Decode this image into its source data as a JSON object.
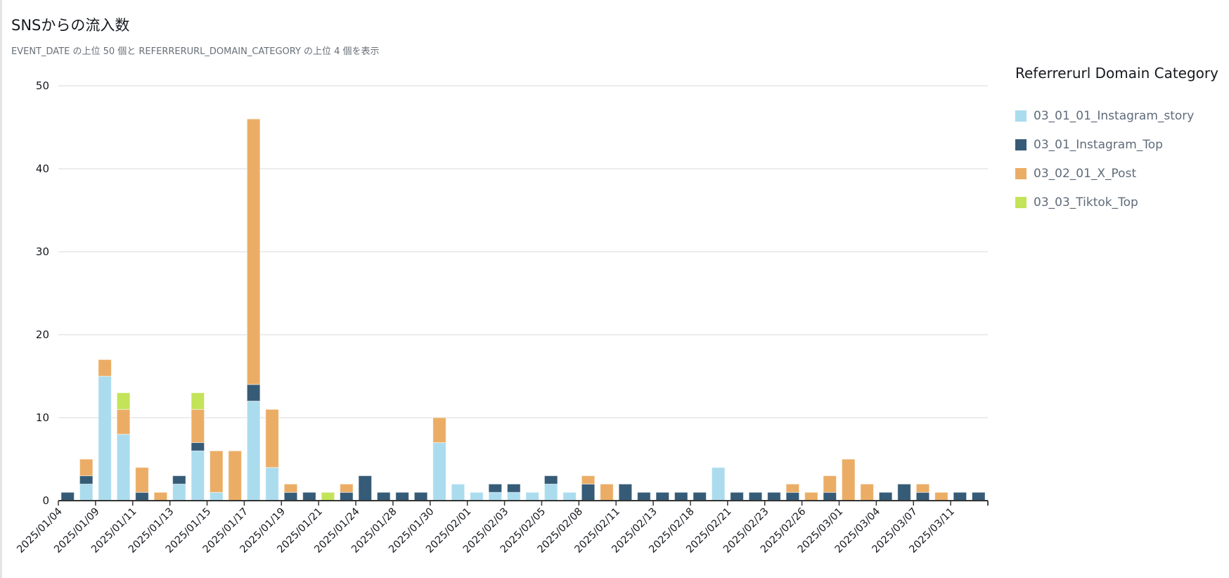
{
  "title": "SNSからの流入数",
  "subtitle": "EVENT_DATE の上位 50 個と REFERRERURL_DOMAIN_CATEGORY の上位 4 個を表示",
  "chart_data": {
    "type": "bar",
    "stacked": true,
    "title": "SNSからの流入数",
    "ylim": [
      0,
      50
    ],
    "yticks": [
      0,
      10,
      20,
      30,
      40,
      50
    ],
    "grid": true,
    "legend_title": "Referrerurl Domain Category",
    "legend_position": "right",
    "tick_labels": [
      "2025/01/04",
      "2025/01/09",
      "2025/01/11",
      "2025/01/13",
      "2025/01/15",
      "2025/01/17",
      "2025/01/19",
      "2025/01/21",
      "2025/01/24",
      "2025/01/28",
      "2025/01/30",
      "2025/02/01",
      "2025/02/03",
      "2025/02/05",
      "2025/02/08",
      "2025/02/11",
      "2025/02/13",
      "2025/02/18",
      "2025/02/21",
      "2025/02/23",
      "2025/02/26",
      "2025/03/01",
      "2025/03/04",
      "2025/03/07",
      "2025/03/11"
    ],
    "series": [
      {
        "name": "03_01_01_Instagram_story",
        "color": "#abdcee",
        "values": [
          0,
          2,
          15,
          8,
          0,
          0,
          2,
          6,
          1,
          0,
          12,
          4,
          0,
          0,
          0,
          0,
          0,
          0,
          0,
          0,
          7,
          2,
          1,
          1,
          1,
          1,
          2,
          1,
          0,
          0,
          0,
          0,
          0,
          0,
          0,
          4,
          0,
          0,
          0,
          0,
          0,
          0,
          0,
          0,
          0,
          0,
          0,
          0,
          0,
          0
        ]
      },
      {
        "name": "03_01_Instagram_Top",
        "color": "#365b77",
        "values": [
          1,
          1,
          0,
          0,
          1,
          0,
          1,
          1,
          0,
          0,
          2,
          0,
          1,
          1,
          0,
          1,
          3,
          1,
          1,
          1,
          0,
          0,
          0,
          1,
          1,
          0,
          1,
          0,
          2,
          0,
          2,
          1,
          1,
          1,
          1,
          0,
          1,
          1,
          1,
          1,
          0,
          1,
          0,
          0,
          1,
          2,
          1,
          0,
          1,
          1
        ]
      },
      {
        "name": "03_02_01_X_Post",
        "color": "#ebad65",
        "values": [
          0,
          2,
          2,
          3,
          3,
          1,
          0,
          4,
          5,
          6,
          32,
          7,
          1,
          0,
          0,
          1,
          0,
          0,
          0,
          0,
          3,
          0,
          0,
          0,
          0,
          0,
          0,
          0,
          1,
          2,
          0,
          0,
          0,
          0,
          0,
          0,
          0,
          0,
          0,
          1,
          1,
          2,
          5,
          2,
          0,
          0,
          1,
          1,
          0,
          0
        ]
      },
      {
        "name": "03_03_Tiktok_Top",
        "color": "#c3e359",
        "values": [
          0,
          0,
          0,
          2,
          0,
          0,
          0,
          2,
          0,
          0,
          0,
          0,
          0,
          0,
          1,
          0,
          0,
          0,
          0,
          0,
          0,
          0,
          0,
          0,
          0,
          0,
          0,
          0,
          0,
          0,
          0,
          0,
          0,
          0,
          0,
          0,
          0,
          0,
          0,
          0,
          0,
          0,
          0,
          0,
          0,
          0,
          0,
          0,
          0,
          0
        ]
      }
    ]
  }
}
